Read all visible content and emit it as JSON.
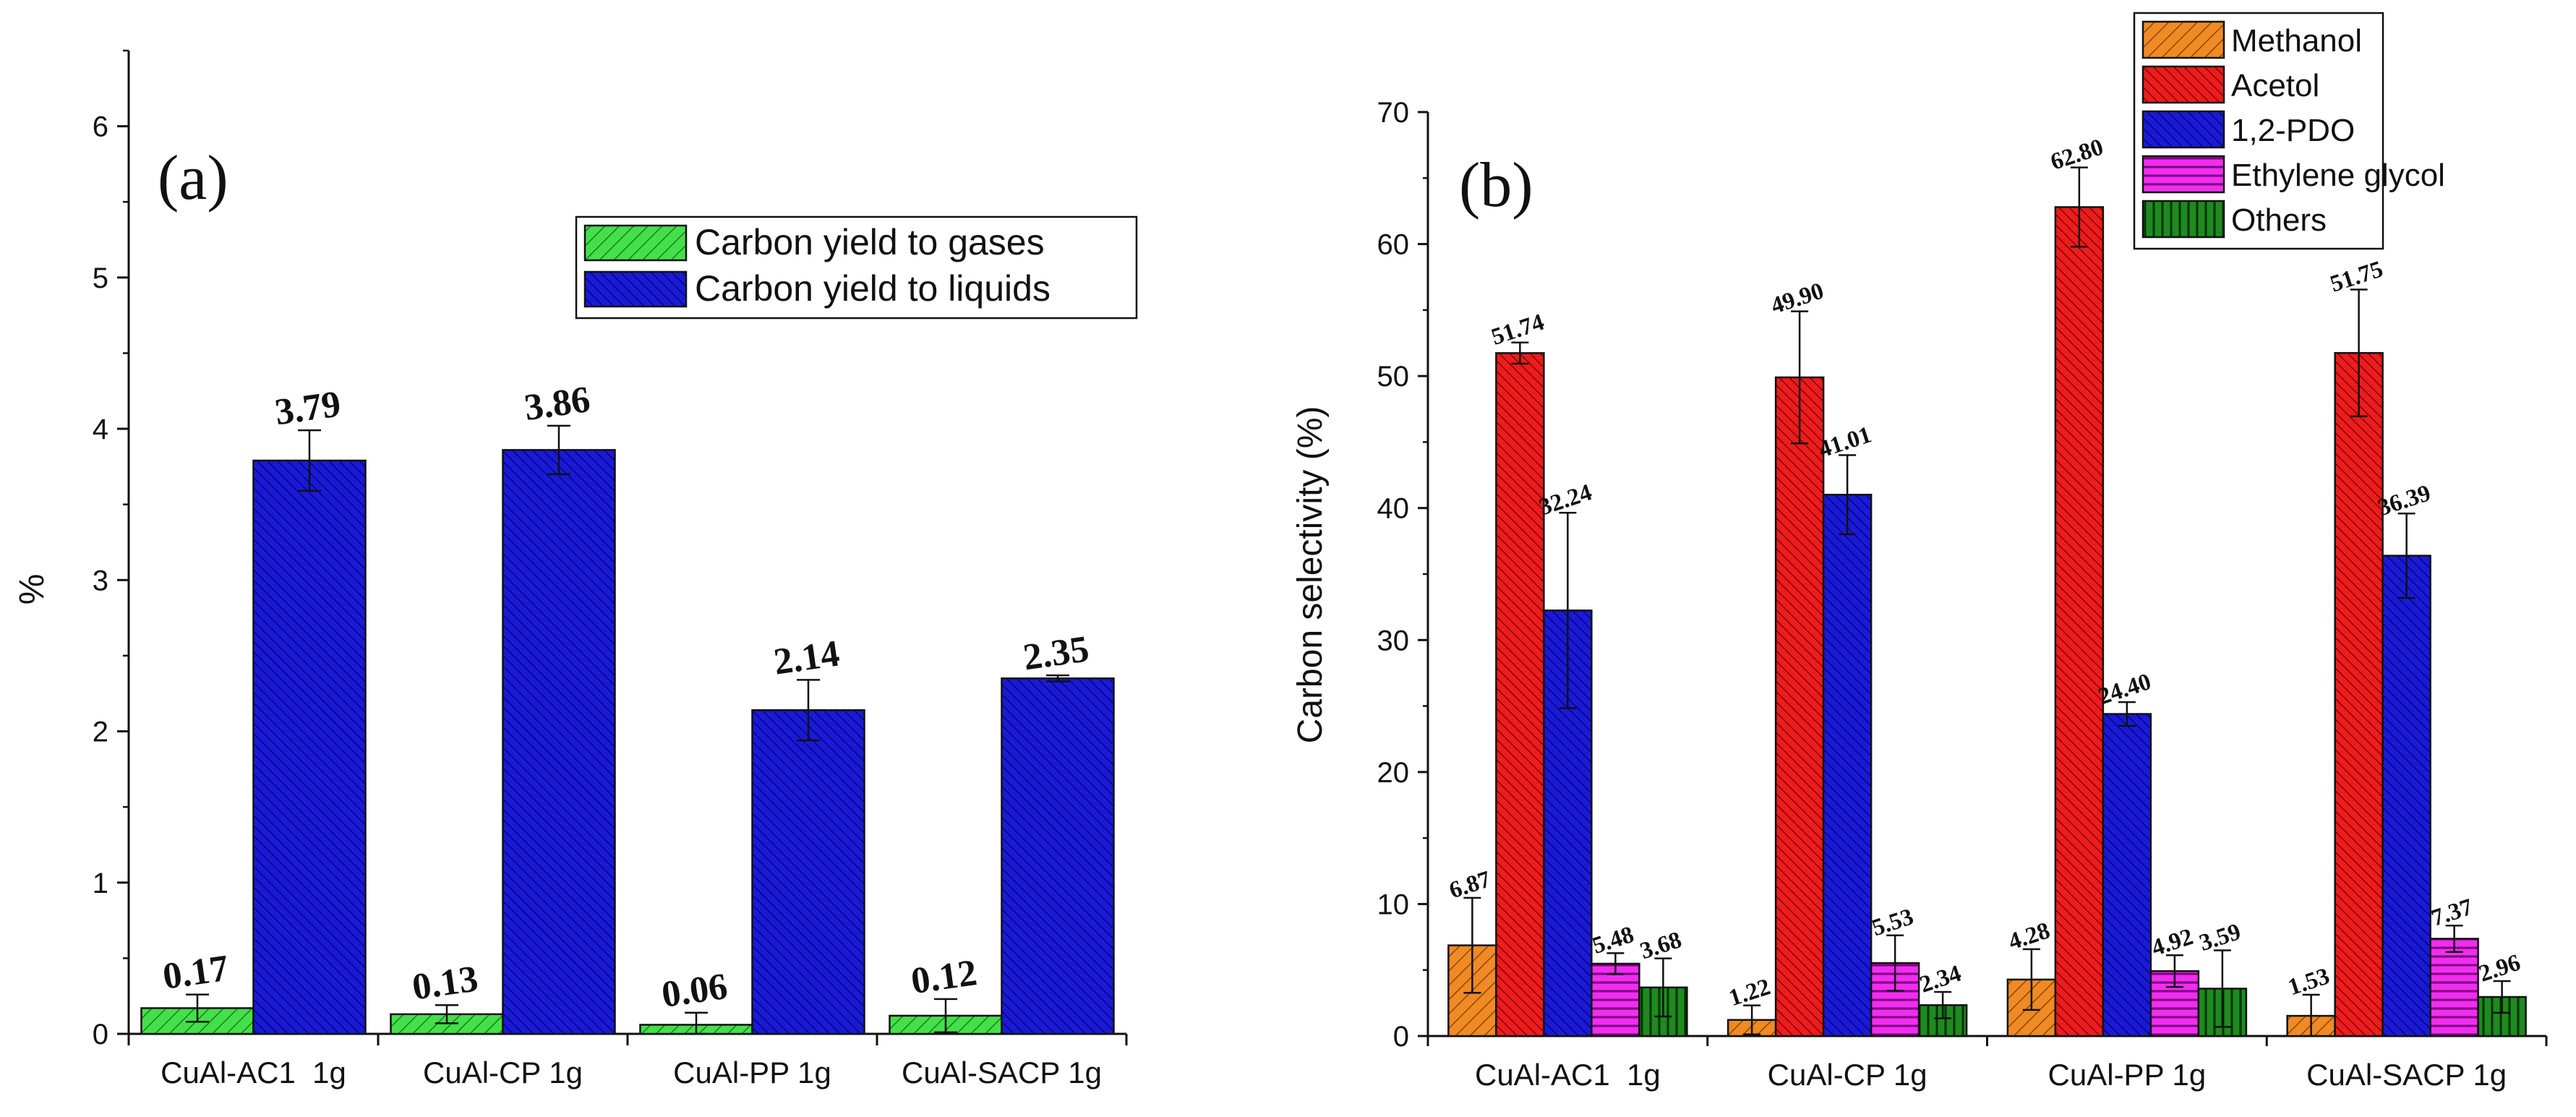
{
  "chart_data": [
    {
      "type": "bar",
      "panel_label": "(a)",
      "title": "",
      "xlabel": "",
      "ylabel": "%",
      "ylim": [
        0,
        6.5
      ],
      "yticks": [
        0,
        1,
        2,
        3,
        4,
        5,
        6
      ],
      "categories": [
        "CuAl-AC1  1g",
        "CuAl-CP 1g",
        "CuAl-PP 1g",
        "CuAl-SACP 1g"
      ],
      "legend_position": "top-right",
      "series": [
        {
          "name": "Carbon yield to gases",
          "color": "#44e04a",
          "values": [
            0.17,
            0.13,
            0.06,
            0.12
          ],
          "labels": [
            "0.17",
            "0.13",
            "0.06",
            "0.12"
          ],
          "errors": [
            0.09,
            0.06,
            0.08,
            0.11
          ]
        },
        {
          "name": "Carbon yield to liquids",
          "color": "#1a1ad6",
          "values": [
            3.79,
            3.86,
            2.14,
            2.35
          ],
          "labels": [
            "3.79",
            "3.86",
            "2.14",
            "2.35"
          ],
          "errors": [
            0.2,
            0.16,
            0.2,
            0.02
          ]
        }
      ]
    },
    {
      "type": "bar",
      "panel_label": "(b)",
      "title": "",
      "xlabel": "",
      "ylabel": "Carbon selectivity (%)",
      "ylim": [
        0,
        70
      ],
      "yticks": [
        0,
        10,
        20,
        30,
        40,
        50,
        60,
        70
      ],
      "categories": [
        "CuAl-AC1  1g",
        "CuAl-CP 1g",
        "CuAl-PP 1g",
        "CuAl-SACP 1g"
      ],
      "legend_position": "top-right",
      "series": [
        {
          "name": "Methanol",
          "color": "#f08a24",
          "values": [
            6.87,
            1.22,
            4.28,
            1.53
          ],
          "labels": [
            "6.87",
            "1.22",
            "4.28",
            "1.53"
          ],
          "errors": [
            3.6,
            1.1,
            2.3,
            1.6
          ]
        },
        {
          "name": "Acetol",
          "color": "#ee1c1c",
          "values": [
            51.74,
            49.9,
            62.8,
            51.75
          ],
          "labels": [
            "51.74",
            "49.90",
            "62.80",
            "51.75"
          ],
          "errors": [
            0.8,
            5.0,
            3.0,
            4.8
          ]
        },
        {
          "name": "1,2-PDO",
          "color": "#1a1ad6",
          "values": [
            32.24,
            41.01,
            24.4,
            36.39
          ],
          "labels": [
            "32.24",
            "41.01",
            "24.40",
            "36.39"
          ],
          "errors": [
            7.4,
            3.0,
            0.9,
            3.2
          ]
        },
        {
          "name": "Ethylene glycol",
          "color": "#f02df0",
          "values": [
            5.48,
            5.53,
            4.92,
            7.37
          ],
          "labels": [
            "5.48",
            "5.53",
            "4.92",
            "7.37"
          ],
          "errors": [
            0.8,
            2.1,
            1.2,
            1.0
          ]
        },
        {
          "name": "Others",
          "color": "#1f8a1f",
          "values": [
            3.68,
            2.34,
            3.59,
            2.96
          ],
          "labels": [
            "3.68",
            "2.34",
            "3.59",
            "2.96"
          ],
          "errors": [
            2.2,
            1.0,
            2.9,
            1.2
          ]
        }
      ]
    }
  ]
}
